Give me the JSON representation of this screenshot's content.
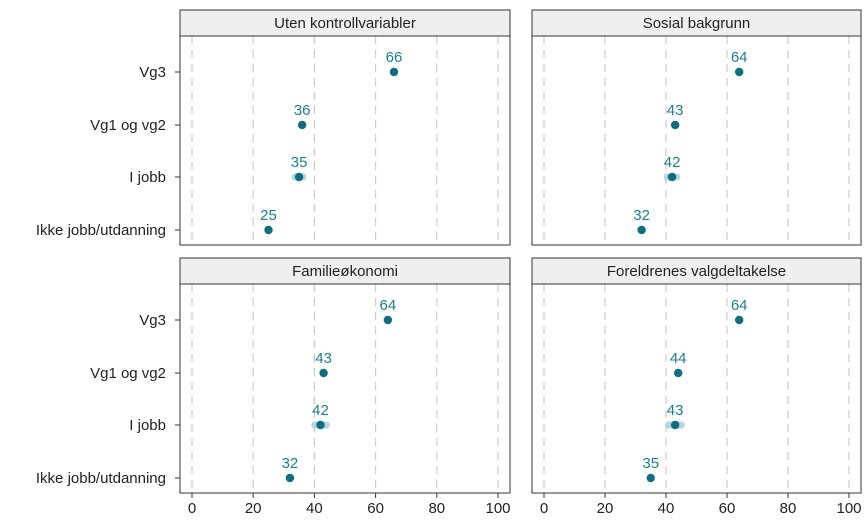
{
  "chart_data": {
    "type": "scatter",
    "categories": [
      "Vg3",
      "Vg1 og vg2",
      "I jobb",
      "Ikke jobb/utdanning"
    ],
    "xlim": [
      0,
      100
    ],
    "xticks": [
      0,
      20,
      40,
      60,
      80,
      100
    ],
    "grid": "vertical dashed",
    "colors": {
      "point": "#0e6e80",
      "label": "#1a7f91",
      "ci": "#a9cfe0",
      "strip": "#efefef"
    },
    "panels": [
      {
        "title": "Uten kontrollvariabler",
        "values": [
          66,
          36,
          35,
          25
        ],
        "labels": [
          "66",
          "36",
          "35",
          "25"
        ],
        "ci": [
          [
            64.9,
            67.1
          ],
          [
            35.3,
            36.7
          ],
          [
            32.6,
            37.4
          ],
          [
            24.0,
            26.0
          ]
        ]
      },
      {
        "title": "Sosial bakgrunn",
        "values": [
          64,
          43,
          42,
          32
        ],
        "labels": [
          "64",
          "43",
          "42",
          "32"
        ],
        "ci": [
          [
            63.0,
            65.0
          ],
          [
            42.2,
            43.8
          ],
          [
            39.3,
            44.7
          ],
          [
            31.0,
            33.0
          ]
        ]
      },
      {
        "title": "Familieøkonomi",
        "values": [
          64,
          43,
          42,
          32
        ],
        "labels": [
          "64",
          "43",
          "42",
          "32"
        ],
        "ci": [
          [
            63.0,
            65.0
          ],
          [
            42.2,
            43.8
          ],
          [
            39.0,
            45.0
          ],
          [
            31.0,
            33.0
          ]
        ]
      },
      {
        "title": "Foreldrenes valgdeltakelse",
        "values": [
          64,
          44,
          43,
          35
        ],
        "labels": [
          "64",
          "44",
          "43",
          "35"
        ],
        "ci": [
          [
            63.0,
            65.0
          ],
          [
            43.2,
            44.8
          ],
          [
            39.8,
            46.2
          ],
          [
            34.0,
            36.0
          ]
        ]
      }
    ]
  }
}
